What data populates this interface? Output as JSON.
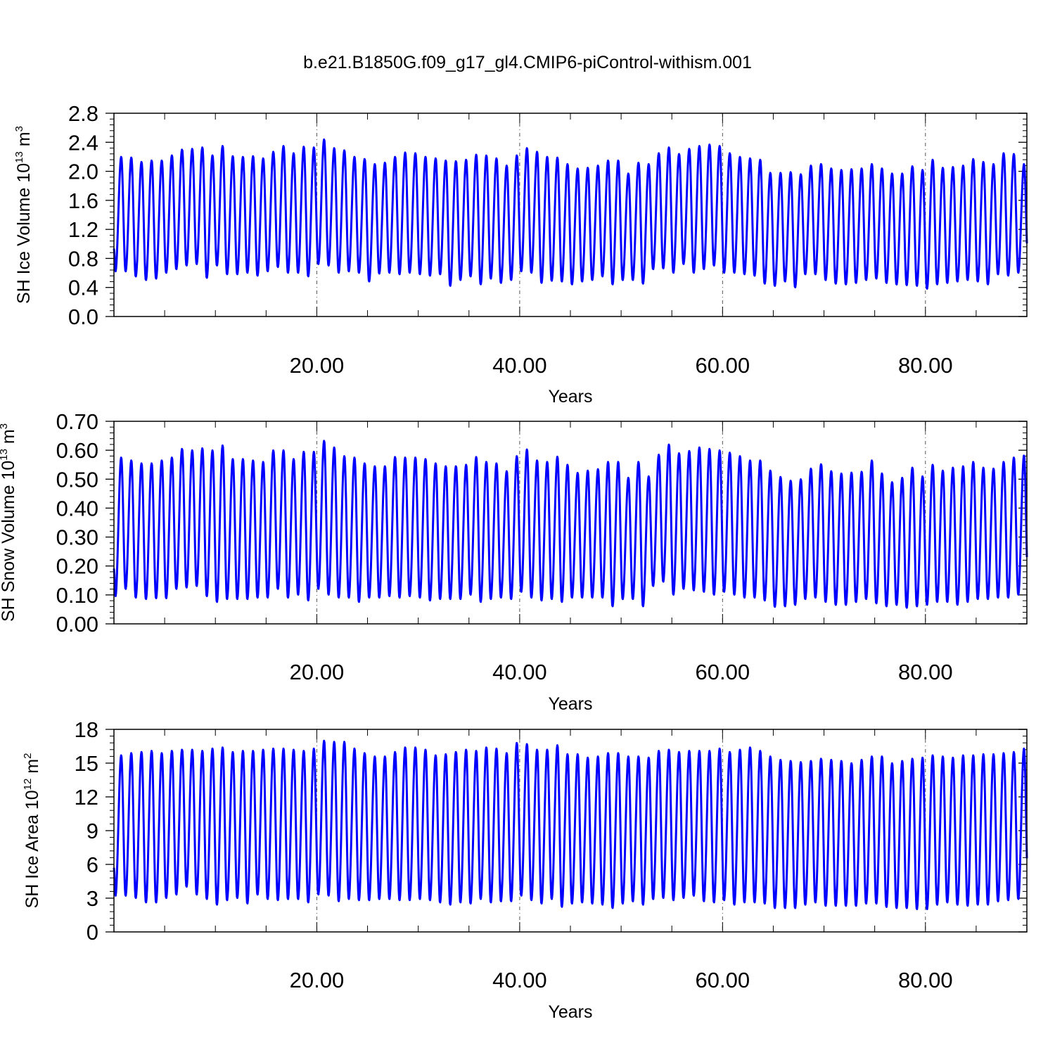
{
  "figure": {
    "title": "b.e21.B1850G.f09_g17_gl4.CMIP6-piControl-withism.001"
  },
  "chart_data": [
    {
      "type": "line",
      "ylabel_main": "SH Ice Volume 10",
      "ylabel_exp": "13",
      "ylabel_unit": " m",
      "ylabel_unit_exp": "3",
      "xlabel": "Years",
      "xlim": [
        0,
        90
      ],
      "ylim": [
        0,
        2.8
      ],
      "x_ticks": [
        20,
        40,
        60,
        80
      ],
      "x_tick_labels": [
        "20.00",
        "40.00",
        "60.00",
        "80.00"
      ],
      "y_ticks": [
        0,
        0.4,
        0.8,
        1.2,
        1.6,
        2.0,
        2.4,
        2.8
      ],
      "y_tick_labels": [
        "0.0",
        "0.4",
        "0.8",
        "1.2",
        "1.6",
        "2.0",
        "2.4",
        "2.8"
      ],
      "color": "#0000ff",
      "annual_max": [
        2.2,
        2.19,
        2.13,
        2.15,
        2.15,
        2.22,
        2.3,
        2.31,
        2.33,
        2.22,
        2.35,
        2.21,
        2.2,
        2.21,
        2.18,
        2.27,
        2.35,
        2.25,
        2.34,
        2.33,
        2.44,
        2.32,
        2.29,
        2.2,
        2.17,
        2.1,
        2.12,
        2.2,
        2.26,
        2.25,
        2.2,
        2.18,
        2.15,
        2.14,
        2.16,
        2.23,
        2.22,
        2.18,
        2.08,
        2.22,
        2.32,
        2.27,
        2.2,
        2.19,
        2.1,
        2.04,
        2.05,
        2.08,
        2.15,
        2.15,
        1.97,
        2.12,
        2.1,
        2.25,
        2.33,
        2.24,
        2.31,
        2.35,
        2.37,
        2.35,
        2.25,
        2.2,
        2.18,
        2.16,
        1.98,
        1.98,
        1.99,
        1.96,
        2.08,
        2.1,
        2.04,
        2.02,
        2.03,
        2.04,
        2.1,
        2.04,
        1.97,
        1.97,
        2.07,
        2.02,
        2.16,
        2.05,
        2.06,
        2.08,
        2.17,
        2.13,
        2.1,
        2.25,
        2.24,
        2.1
      ],
      "annual_min": [
        0.62,
        0.62,
        0.55,
        0.5,
        0.52,
        0.6,
        0.65,
        0.7,
        0.72,
        0.53,
        0.7,
        0.58,
        0.58,
        0.6,
        0.56,
        0.62,
        0.68,
        0.6,
        0.6,
        0.55,
        0.72,
        0.7,
        0.6,
        0.62,
        0.6,
        0.48,
        0.59,
        0.6,
        0.58,
        0.6,
        0.58,
        0.56,
        0.58,
        0.42,
        0.5,
        0.55,
        0.44,
        0.52,
        0.46,
        0.5,
        0.62,
        0.6,
        0.46,
        0.49,
        0.48,
        0.44,
        0.48,
        0.5,
        0.55,
        0.44,
        0.5,
        0.5,
        0.45,
        0.65,
        0.66,
        0.6,
        0.72,
        0.6,
        0.65,
        0.7,
        0.6,
        0.6,
        0.58,
        0.56,
        0.45,
        0.42,
        0.48,
        0.4,
        0.58,
        0.58,
        0.5,
        0.45,
        0.44,
        0.46,
        0.5,
        0.52,
        0.46,
        0.44,
        0.43,
        0.42,
        0.38,
        0.44,
        0.46,
        0.48,
        0.5,
        0.48,
        0.44,
        0.58,
        0.56,
        0.6
      ]
    },
    {
      "type": "line",
      "ylabel_main": "SH Snow Volume 10",
      "ylabel_exp": "13",
      "ylabel_unit": " m",
      "ylabel_unit_exp": "3",
      "xlabel": "Years",
      "xlim": [
        0,
        90
      ],
      "ylim": [
        0,
        0.7
      ],
      "x_ticks": [
        20,
        40,
        60,
        80
      ],
      "x_tick_labels": [
        "20.00",
        "40.00",
        "60.00",
        "80.00"
      ],
      "y_ticks": [
        0,
        0.1,
        0.2,
        0.3,
        0.4,
        0.5,
        0.6,
        0.7
      ],
      "y_tick_labels": [
        "0.00",
        "0.10",
        "0.20",
        "0.30",
        "0.40",
        "0.50",
        "0.60",
        "0.70"
      ],
      "color": "#0000ff",
      "annual_max": [
        0.575,
        0.565,
        0.555,
        0.555,
        0.565,
        0.575,
        0.605,
        0.6,
        0.607,
        0.6,
        0.617,
        0.57,
        0.57,
        0.565,
        0.56,
        0.6,
        0.6,
        0.57,
        0.595,
        0.595,
        0.633,
        0.61,
        0.58,
        0.575,
        0.555,
        0.545,
        0.545,
        0.577,
        0.575,
        0.575,
        0.57,
        0.555,
        0.545,
        0.545,
        0.55,
        0.577,
        0.56,
        0.555,
        0.528,
        0.58,
        0.603,
        0.565,
        0.56,
        0.578,
        0.55,
        0.522,
        0.53,
        0.535,
        0.56,
        0.56,
        0.505,
        0.56,
        0.51,
        0.585,
        0.62,
        0.59,
        0.598,
        0.61,
        0.605,
        0.6,
        0.592,
        0.58,
        0.565,
        0.565,
        0.53,
        0.508,
        0.495,
        0.5,
        0.537,
        0.552,
        0.528,
        0.52,
        0.523,
        0.526,
        0.565,
        0.52,
        0.49,
        0.505,
        0.54,
        0.51,
        0.55,
        0.53,
        0.54,
        0.545,
        0.56,
        0.54,
        0.537,
        0.56,
        0.575,
        0.582
      ],
      "annual_min": [
        0.095,
        0.12,
        0.09,
        0.085,
        0.088,
        0.088,
        0.12,
        0.125,
        0.13,
        0.095,
        0.075,
        0.085,
        0.085,
        0.085,
        0.09,
        0.09,
        0.12,
        0.09,
        0.1,
        0.08,
        0.12,
        0.1,
        0.09,
        0.09,
        0.075,
        0.09,
        0.09,
        0.095,
        0.09,
        0.095,
        0.09,
        0.08,
        0.085,
        0.085,
        0.085,
        0.1,
        0.075,
        0.085,
        0.09,
        0.085,
        0.11,
        0.09,
        0.08,
        0.085,
        0.075,
        0.09,
        0.09,
        0.09,
        0.09,
        0.06,
        0.085,
        0.085,
        0.06,
        0.13,
        0.145,
        0.1,
        0.12,
        0.115,
        0.11,
        0.1,
        0.11,
        0.1,
        0.09,
        0.09,
        0.08,
        0.058,
        0.06,
        0.065,
        0.085,
        0.09,
        0.075,
        0.065,
        0.065,
        0.075,
        0.085,
        0.07,
        0.06,
        0.065,
        0.055,
        0.06,
        0.065,
        0.075,
        0.075,
        0.065,
        0.075,
        0.085,
        0.085,
        0.09,
        0.09,
        0.1
      ]
    },
    {
      "type": "line",
      "ylabel_main": "SH Ice Area 10",
      "ylabel_exp": "12",
      "ylabel_unit": " m",
      "ylabel_unit_exp": "2",
      "xlabel": "Years",
      "xlim": [
        0,
        90
      ],
      "ylim": [
        0,
        18
      ],
      "x_ticks": [
        20,
        40,
        60,
        80
      ],
      "x_tick_labels": [
        "20.00",
        "40.00",
        "60.00",
        "80.00"
      ],
      "y_ticks": [
        0,
        3,
        6,
        9,
        12,
        15,
        18
      ],
      "y_tick_labels": [
        "0",
        "3",
        "6",
        "9",
        "12",
        "15",
        "18"
      ],
      "color": "#0000ff",
      "annual_max": [
        15.7,
        15.9,
        16.0,
        16.1,
        15.9,
        16.1,
        16.2,
        16.2,
        16.1,
        16.3,
        16.4,
        16.0,
        16.1,
        16.1,
        16.2,
        16.3,
        16.3,
        16.2,
        16.1,
        16.3,
        17.0,
        16.9,
        16.9,
        16.3,
        15.9,
        15.6,
        15.6,
        16.0,
        16.4,
        16.4,
        16.2,
        15.7,
        15.8,
        16.0,
        16.2,
        16.1,
        16.4,
        16.3,
        15.9,
        16.8,
        16.7,
        16.2,
        16.2,
        16.6,
        15.8,
        15.8,
        15.5,
        15.6,
        15.9,
        15.9,
        15.6,
        15.6,
        15.5,
        16.1,
        16.2,
        16.0,
        16.1,
        16.1,
        16.1,
        16.3,
        16.0,
        16.2,
        16.4,
        16.1,
        15.6,
        15.3,
        15.2,
        15.1,
        15.2,
        15.4,
        15.3,
        15.2,
        15.0,
        15.3,
        15.6,
        15.6,
        15.0,
        15.2,
        15.4,
        15.5,
        15.7,
        15.6,
        15.5,
        15.7,
        15.7,
        15.8,
        15.8,
        15.9,
        16.0,
        16.3
      ],
      "annual_min": [
        3.2,
        3.2,
        3.0,
        2.6,
        2.6,
        3.0,
        3.3,
        4.0,
        3.3,
        2.9,
        2.4,
        2.8,
        3.0,
        2.5,
        3.3,
        2.9,
        2.8,
        2.9,
        2.9,
        2.6,
        3.3,
        3.2,
        2.7,
        2.9,
        2.8,
        2.8,
        2.9,
        2.9,
        2.8,
        2.8,
        2.9,
        2.8,
        2.6,
        2.4,
        2.6,
        2.5,
        2.9,
        2.6,
        2.7,
        2.7,
        3.2,
        2.8,
        2.5,
        2.9,
        2.2,
        2.5,
        2.6,
        2.5,
        2.4,
        2.1,
        2.5,
        2.7,
        2.4,
        2.9,
        3.0,
        2.8,
        3.0,
        3.2,
        2.7,
        2.6,
        2.8,
        2.4,
        2.6,
        2.6,
        2.5,
        2.1,
        2.1,
        2.1,
        2.4,
        2.6,
        2.3,
        2.3,
        2.3,
        2.3,
        2.5,
        2.5,
        2.2,
        2.1,
        2.1,
        2.0,
        2.0,
        2.4,
        2.6,
        2.4,
        2.3,
        2.4,
        2.4,
        2.7,
        2.8,
        2.9
      ]
    }
  ]
}
